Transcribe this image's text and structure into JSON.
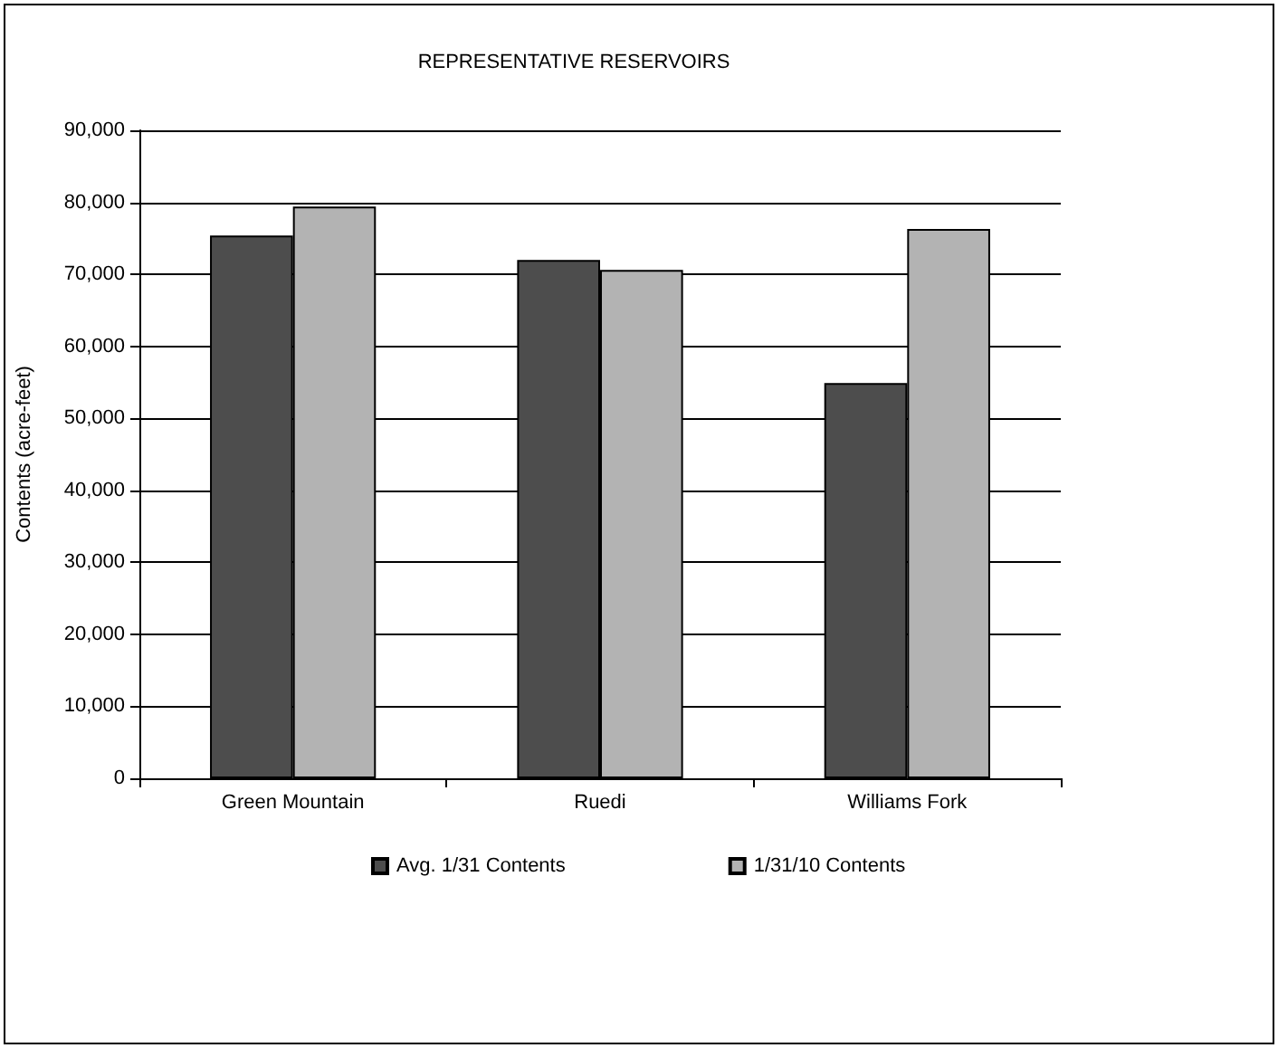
{
  "chart_data": {
    "type": "bar",
    "title": "REPRESENTATIVE RESERVOIRS",
    "ylabel": "Contents (acre-feet)",
    "categories": [
      "Green Mountain",
      "Ruedi",
      "Williams Fork"
    ],
    "series": [
      {
        "name": "Avg. 1/31 Contents",
        "color": "#4d4d4d",
        "values": [
          75400,
          72000,
          54900
        ]
      },
      {
        "name": "1/31/10 Contents",
        "color": "#b3b3b3",
        "values": [
          79400,
          70600,
          76300
        ]
      }
    ],
    "ylim": [
      0,
      90000
    ],
    "yticks": [
      0,
      {
        "value": 10000,
        "label": "10,000"
      },
      {
        "value": 20000,
        "label": "20,000"
      },
      {
        "value": 30000,
        "label": "30,000"
      },
      {
        "value": 40000,
        "label": "40,000"
      },
      {
        "value": 50000,
        "label": "50,000"
      },
      {
        "value": 60000,
        "label": "60,000"
      },
      {
        "value": 70000,
        "label": "70,000"
      },
      {
        "value": 80000,
        "label": "80,000"
      },
      {
        "value": 90000,
        "label": "90,000"
      }
    ],
    "grid": "y",
    "legend": "bottom"
  }
}
